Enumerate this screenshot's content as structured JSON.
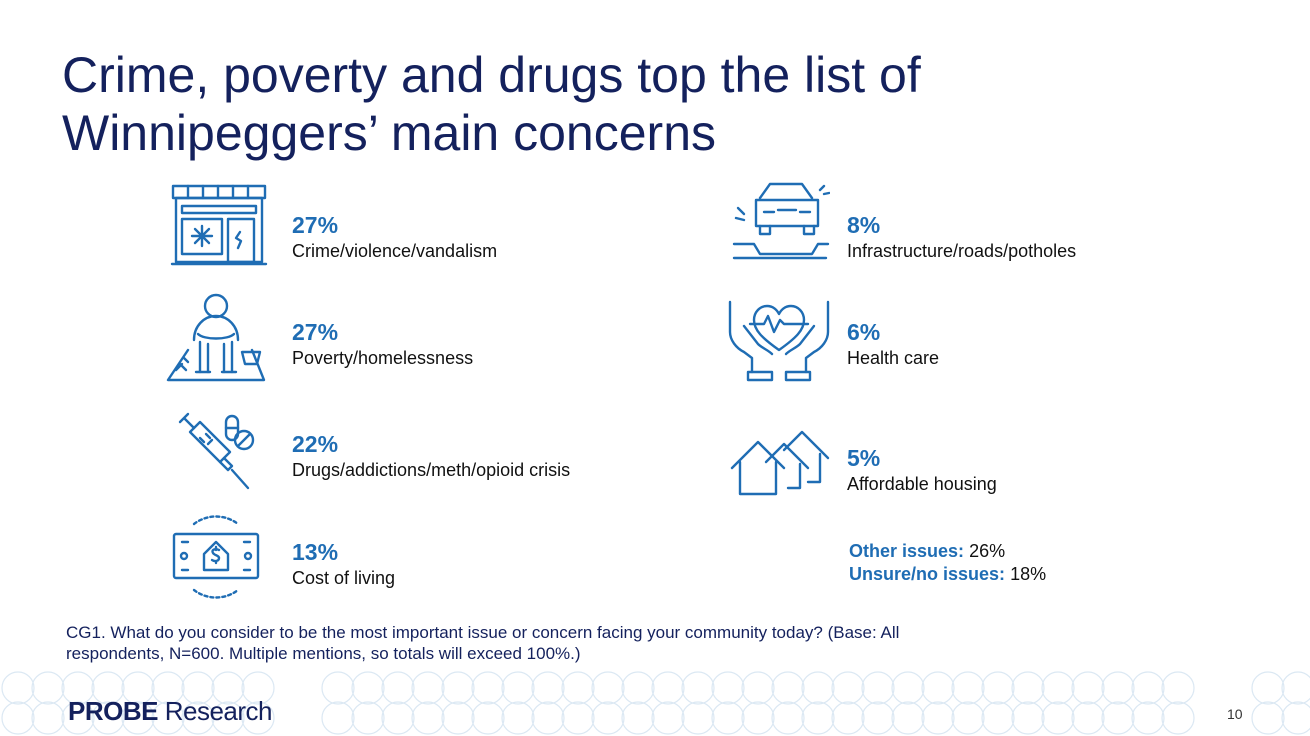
{
  "title": "Crime, poverty and drugs top the list of Winnipeggers’ main concerns",
  "items": [
    {
      "pct": "27%",
      "label": "Crime/violence/vandalism",
      "icon": "storefront-vandalism-icon"
    },
    {
      "pct": "27%",
      "label": "Poverty/homelessness",
      "icon": "homeless-person-icon"
    },
    {
      "pct": "22%",
      "label": "Drugs/addictions/meth/opioid crisis",
      "icon": "syringe-pills-icon"
    },
    {
      "pct": "13%",
      "label": "Cost of living",
      "icon": "money-house-icon"
    },
    {
      "pct": "8%",
      "label": "Infrastructure/roads/potholes",
      "icon": "car-pothole-icon"
    },
    {
      "pct": "6%",
      "label": "Health care",
      "icon": "hands-heart-icon"
    },
    {
      "pct": "5%",
      "label": "Affordable housing",
      "icon": "houses-icon"
    }
  ],
  "other": {
    "other_label": "Other issues:",
    "other_value": "26%",
    "unsure_label": "Unsure/no issues:",
    "unsure_value": "18%"
  },
  "footnote": "CG1. What do you consider to be the most important issue or concern facing your community today? (Base: All respondents, N=600. Multiple mentions, so totals will exceed 100%.)",
  "logo": {
    "probe": "PROBE",
    "research": "Research"
  },
  "page_number": "10",
  "colors": {
    "title": "#14215d",
    "accent": "#1f6db4",
    "pattern": "#dbe8f3"
  }
}
